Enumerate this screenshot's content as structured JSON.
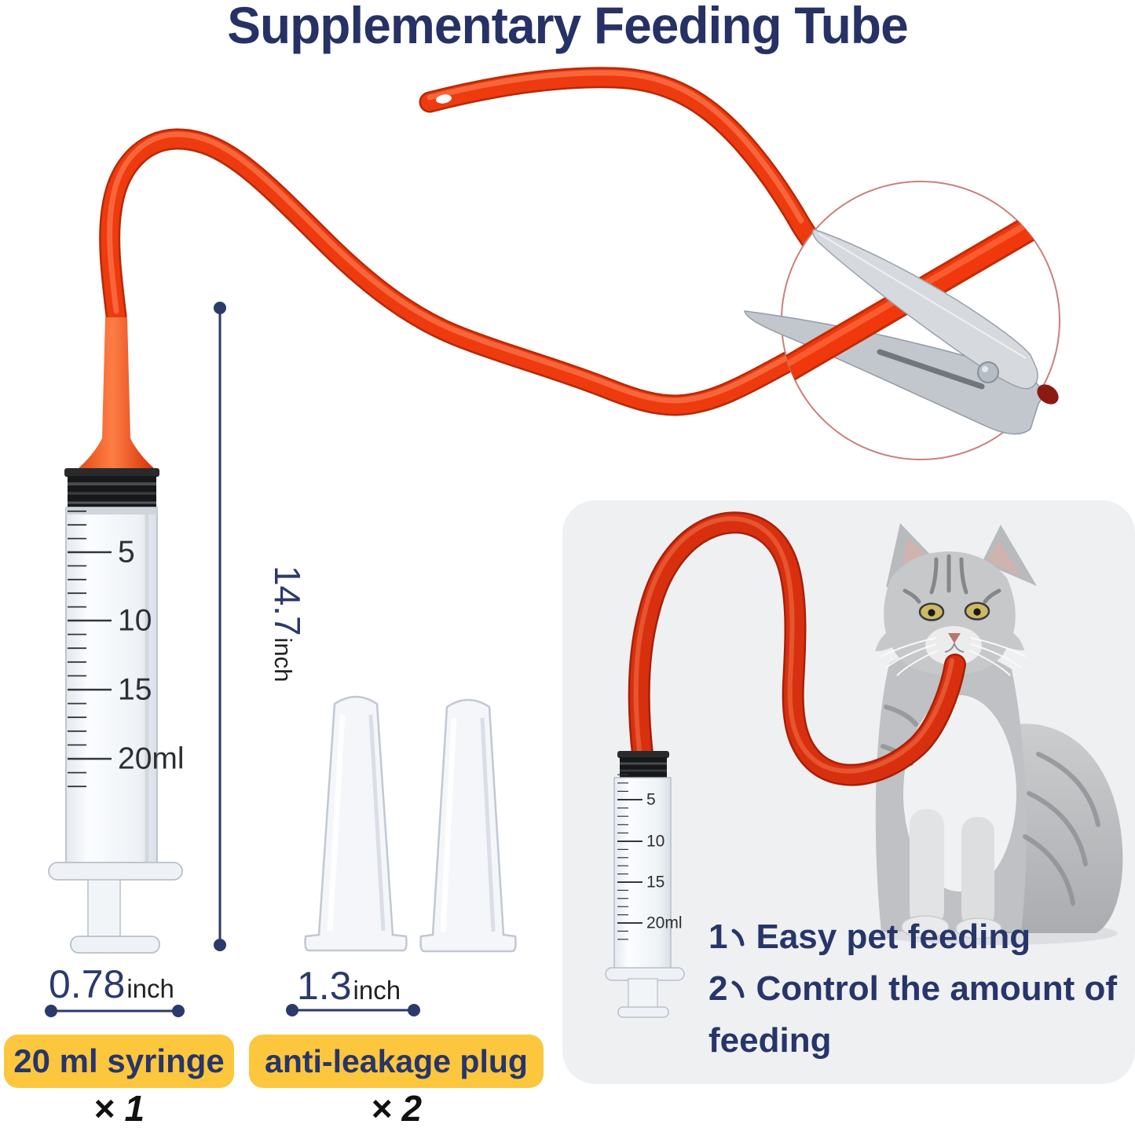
{
  "title": "Supplementary Feeding Tube",
  "syringe": {
    "scale_labels": [
      "5",
      "10",
      "15",
      "20ml"
    ]
  },
  "dimensions": {
    "tube_length": {
      "value": "14.7",
      "unit": "inch"
    },
    "syringe_width": {
      "value": "0.78",
      "unit": "inch"
    },
    "plug_height": {
      "value": "1.3",
      "unit": "inch"
    }
  },
  "product_labels": {
    "syringe": {
      "name": "20 ml syringe",
      "quantity": "× 1"
    },
    "plug": {
      "name": "anti-leakage plug",
      "quantity": "× 2"
    }
  },
  "inset": {
    "benefits": [
      {
        "num": "1",
        "separator": "、",
        "text": "Easy pet feeding"
      },
      {
        "num": "2",
        "separator": "、",
        "text": "Control the amount of feeding"
      }
    ]
  },
  "colors": {
    "title_navy": "#263266",
    "dim_navy": "#2b3a6b",
    "tube_red": "#ee3a0f",
    "tube_red_dark": "#b82807",
    "tube_highlight": "#ff8a5e",
    "label_yellow": "#fcc63d",
    "count_black": "#111111",
    "inset_bg": "#eef0f2",
    "circle_ring": "#c97f7f",
    "steel_light": "#d6dade",
    "steel_dark": "#c2c7cd"
  }
}
